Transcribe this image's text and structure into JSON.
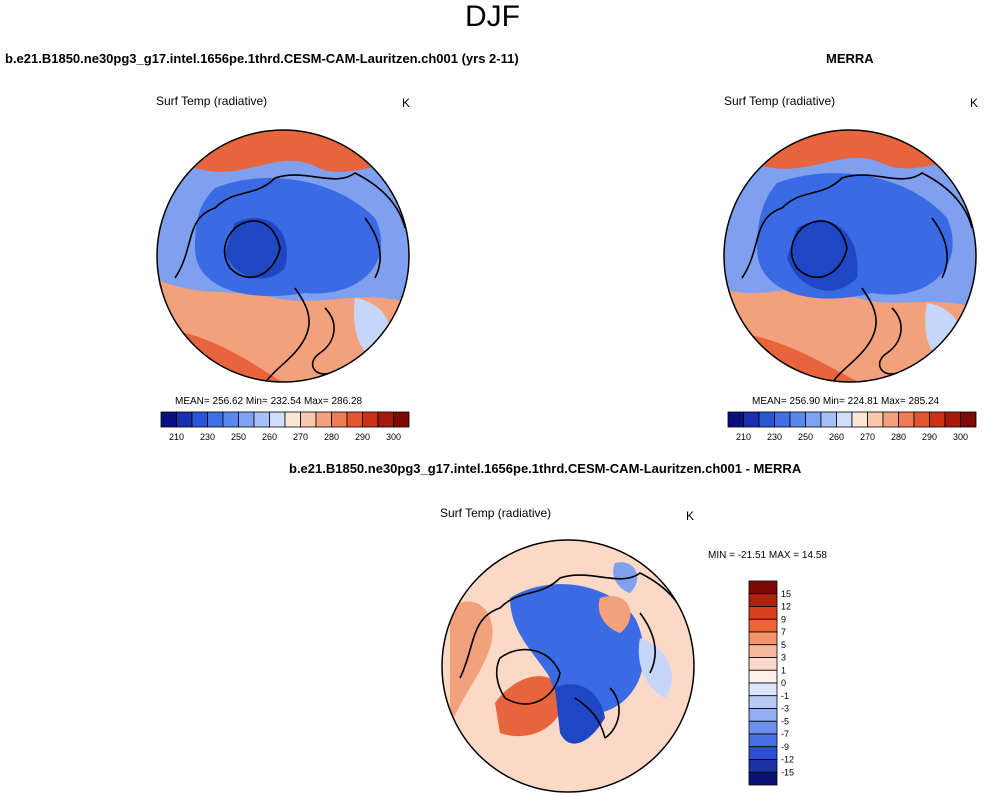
{
  "title": "DJF",
  "panels": {
    "model": {
      "header": "b.e21.B1850.ne30pg3_g17.intel.1656pe.1thrd.CESM-CAM-Lauritzen.ch001 (yrs 2-11)",
      "field": "Surf Temp (radiative)",
      "units": "K",
      "stats": "MEAN= 256.62  Min= 232.54  Max= 286.28"
    },
    "obs": {
      "header": "MERRA",
      "field": "Surf Temp (radiative)",
      "units": "K",
      "stats": "MEAN= 256.90  Min= 224.81  Max= 285.24"
    },
    "diff": {
      "header": "b.e21.B1850.ne30pg3_g17.intel.1656pe.1thrd.CESM-CAM-Lauritzen.ch001 - MERRA",
      "field": "Surf Temp (radiative)",
      "units": "K",
      "stats": "MIN = -21.51 MAX =  14.58"
    }
  },
  "abs_colorbar": {
    "colors": [
      "#0a0f80",
      "#1a2fb0",
      "#2a55d6",
      "#3f6fe6",
      "#5a88ee",
      "#7fa3f2",
      "#a6c0f6",
      "#cfdcfa",
      "#fbe6d8",
      "#f8c7ac",
      "#f3a280",
      "#ee7c56",
      "#e2552e",
      "#c93216",
      "#a51a0a",
      "#7d0a04"
    ],
    "tick_labels": [
      "210",
      "230",
      "250",
      "260",
      "270",
      "280",
      "290",
      "300"
    ]
  },
  "diff_colorbar": {
    "colors": [
      "#7d0a04",
      "#b5200c",
      "#d8401c",
      "#ec6438",
      "#f4926a",
      "#f8b89c",
      "#fbd9c8",
      "#fdf0e8",
      "#dce6fa",
      "#b8cbf6",
      "#92aef1",
      "#6d8fec",
      "#4a70e3",
      "#2e50cf",
      "#1c33a8",
      "#0a1470"
    ],
    "tick_labels": [
      "15",
      "12",
      "9",
      "7",
      "5",
      "3",
      "1",
      "0",
      "-1",
      "-3",
      "-5",
      "-7",
      "-9",
      "-12",
      "-15"
    ]
  },
  "map_colors": {
    "warm_strong": "#e8643d",
    "warm_mid": "#f3a07c",
    "warm_light": "#fbd9c6",
    "cold_deep": "#1f47c4",
    "cold_mid": "#3a6ae4",
    "cold_light": "#7ea0ef",
    "cold_pale": "#c6d6f8",
    "coast": "#000000"
  }
}
